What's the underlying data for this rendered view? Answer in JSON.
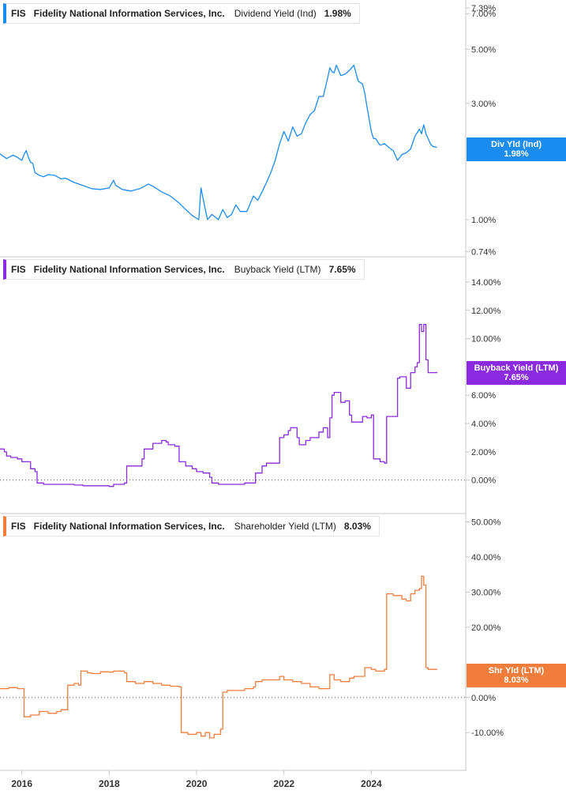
{
  "chart_data": [
    {
      "type": "line",
      "title": "FIS Fidelity National Information Services, Inc. Dividend Yield (Ind)",
      "legend": {
        "symbol": "FIS",
        "company": "Fidelity National Information Services, Inc.",
        "series_label": "Dividend Yield (Ind)",
        "value_label": "1.98%"
      },
      "flag": {
        "label": "Div Yld (Ind)",
        "value_label": "1.98%",
        "line2_visible_prefix": "2."
      },
      "color": "#1a8cf0",
      "y_scale": "log",
      "ylim": [
        0.72,
        7.5
      ],
      "y_ticks": [
        {
          "value": 7.39,
          "label": "7.39%"
        },
        {
          "value": 7.0,
          "label": "7.00%"
        },
        {
          "value": 5.0,
          "label": "5.00%"
        },
        {
          "value": 3.0,
          "label": "3.00%"
        },
        {
          "value": 1.0,
          "label": "1.00%"
        },
        {
          "value": 0.74,
          "label": "0.74%"
        }
      ],
      "series": [
        {
          "x": [
            2015.5,
            2015.65,
            2015.8,
            2015.9,
            2016.0,
            2016.05,
            2016.1,
            2016.15,
            2016.2,
            2016.25,
            2016.3,
            2016.4,
            2016.5,
            2016.6,
            2016.75,
            2016.9,
            2017.0,
            2017.2,
            2017.4,
            2017.6,
            2017.8,
            2018.0,
            2018.1,
            2018.15,
            2018.3,
            2018.5,
            2018.7,
            2018.9,
            2019.0,
            2019.2,
            2019.4,
            2019.6,
            2019.75,
            2019.9,
            2020.05,
            2020.1,
            2020.15,
            2020.2,
            2020.25,
            2020.35,
            2020.5,
            2020.6,
            2020.7,
            2020.8,
            2020.9,
            2021.0,
            2021.15,
            2021.3,
            2021.4,
            2021.5,
            2021.6,
            2021.7,
            2021.8,
            2021.9,
            2022.0,
            2022.1,
            2022.2,
            2022.3,
            2022.4,
            2022.5,
            2022.6,
            2022.7,
            2022.8,
            2022.9,
            2023.0,
            2023.05,
            2023.1,
            2023.15,
            2023.2,
            2023.3,
            2023.4,
            2023.5,
            2023.6,
            2023.7,
            2023.8,
            2023.85,
            2023.9,
            2024.0,
            2024.05,
            2024.1,
            2024.15,
            2024.2,
            2024.3,
            2024.4,
            2024.5,
            2024.6,
            2024.7,
            2024.8,
            2024.9,
            2025.0,
            2025.1,
            2025.15,
            2025.2,
            2025.25,
            2025.3,
            2025.35,
            2025.4,
            2025.5
          ],
          "y": [
            1.86,
            1.78,
            1.84,
            1.8,
            1.75,
            1.85,
            1.92,
            1.8,
            1.72,
            1.7,
            1.56,
            1.52,
            1.5,
            1.53,
            1.52,
            1.47,
            1.48,
            1.42,
            1.38,
            1.34,
            1.33,
            1.35,
            1.45,
            1.38,
            1.33,
            1.31,
            1.34,
            1.4,
            1.37,
            1.3,
            1.25,
            1.17,
            1.1,
            1.04,
            1.0,
            1.35,
            1.22,
            1.1,
            1.0,
            1.05,
            1.0,
            1.1,
            1.02,
            1.05,
            1.15,
            1.08,
            1.08,
            1.25,
            1.2,
            1.3,
            1.42,
            1.56,
            1.75,
            2.05,
            2.3,
            2.1,
            2.4,
            2.2,
            2.25,
            2.5,
            2.7,
            2.8,
            3.2,
            3.2,
            3.8,
            4.2,
            4.05,
            4.0,
            4.3,
            3.9,
            3.95,
            4.1,
            4.3,
            3.7,
            3.6,
            3.3,
            2.9,
            2.3,
            2.15,
            2.15,
            2.08,
            2.02,
            2.05,
            1.98,
            1.92,
            1.75,
            1.85,
            1.88,
            1.95,
            2.2,
            2.35,
            2.25,
            2.45,
            2.25,
            2.15,
            2.05,
            2.0,
            1.98
          ]
        }
      ]
    },
    {
      "type": "line",
      "title": "FIS Fidelity National Information Services, Inc. Buyback Yield (LTM)",
      "legend": {
        "symbol": "FIS",
        "company": "Fidelity National Information Services, Inc.",
        "series_label": "Buyback Yield (LTM)",
        "value_label": "7.65%"
      },
      "flag": {
        "label": "Buyback Yield (LTM)",
        "value_label": "7.65%"
      },
      "color": "#8a2be2",
      "ylim": [
        -0.8,
        14.5
      ],
      "y_ticks": [
        {
          "value": 14,
          "label": "14.00%"
        },
        {
          "value": 12,
          "label": "12.00%"
        },
        {
          "value": 10,
          "label": "10.00%"
        },
        {
          "value": 6,
          "label": "6.00%"
        },
        {
          "value": 4,
          "label": "4.00%"
        },
        {
          "value": 2,
          "label": "2.00%"
        },
        {
          "value": 0,
          "label": "0.00%"
        }
      ],
      "series": [
        {
          "x": [
            2015.5,
            2015.6,
            2015.65,
            2015.75,
            2015.9,
            2016.0,
            2016.05,
            2016.2,
            2016.3,
            2016.35,
            2016.5,
            2016.7,
            2016.9,
            2017.0,
            2017.2,
            2017.4,
            2017.6,
            2017.8,
            2018.0,
            2018.1,
            2018.2,
            2018.35,
            2018.4,
            2018.6,
            2018.75,
            2018.8,
            2018.9,
            2019.0,
            2019.2,
            2019.3,
            2019.35,
            2019.45,
            2019.5,
            2019.6,
            2019.75,
            2019.9,
            2020.0,
            2020.15,
            2020.3,
            2020.35,
            2020.5,
            2020.7,
            2020.9,
            2021.1,
            2021.3,
            2021.35,
            2021.5,
            2021.6,
            2021.85,
            2021.9,
            2022.0,
            2022.1,
            2022.15,
            2022.3,
            2022.35,
            2022.5,
            2022.6,
            2022.7,
            2022.8,
            2022.9,
            2023.0,
            2023.05,
            2023.1,
            2023.15,
            2023.3,
            2023.4,
            2023.5,
            2023.55,
            2023.6,
            2023.7,
            2023.8,
            2023.9,
            2024.0,
            2024.05,
            2024.1,
            2024.2,
            2024.3,
            2024.35,
            2024.5,
            2024.6,
            2024.65,
            2024.8,
            2024.9,
            2025.0,
            2025.05,
            2025.1,
            2025.15,
            2025.2,
            2025.25,
            2025.3,
            2025.4,
            2025.5
          ],
          "y": [
            2.2,
            2.0,
            1.7,
            1.6,
            1.5,
            1.3,
            1.3,
            0.8,
            0.6,
            -0.2,
            -0.3,
            -0.3,
            -0.3,
            -0.3,
            -0.35,
            -0.4,
            -0.4,
            -0.4,
            -0.45,
            -0.3,
            -0.3,
            -0.2,
            1.0,
            1.0,
            1.5,
            2.2,
            2.2,
            2.6,
            2.8,
            2.7,
            2.5,
            2.5,
            2.4,
            1.3,
            1.0,
            0.8,
            0.6,
            0.5,
            0.2,
            -0.2,
            -0.3,
            -0.3,
            -0.3,
            -0.2,
            -0.2,
            0.5,
            1.0,
            1.2,
            1.2,
            3.0,
            3.2,
            3.5,
            3.7,
            3.0,
            2.5,
            2.8,
            3.0,
            3.0,
            3.4,
            3.7,
            3.0,
            4.4,
            6.0,
            6.2,
            5.5,
            5.6,
            4.6,
            4.1,
            4.1,
            4.1,
            4.5,
            4.4,
            4.6,
            1.5,
            1.5,
            1.3,
            1.2,
            4.5,
            4.5,
            7.2,
            7.3,
            6.5,
            7.6,
            8.0,
            8.3,
            11.0,
            10.5,
            11.0,
            8.5,
            7.6,
            7.6,
            7.65
          ]
        }
      ]
    },
    {
      "type": "line",
      "title": "FIS Fidelity National Information Services, Inc. Shareholder Yield (LTM)",
      "legend": {
        "symbol": "FIS",
        "company": "Fidelity National Information Services, Inc.",
        "series_label": "Shareholder Yield (LTM)",
        "value_label": "8.03%"
      },
      "flag": {
        "label": "Shr Yld (LTM)",
        "value_label": "8.03%",
        "line1_visible_suffix": "10.00%"
      },
      "color": "#f07d3c",
      "ylim": [
        -14,
        51
      ],
      "y_ticks": [
        {
          "value": 50,
          "label": "50.00%"
        },
        {
          "value": 40,
          "label": "40.00%"
        },
        {
          "value": 30,
          "label": "30.00%"
        },
        {
          "value": 20,
          "label": "20.00%"
        },
        {
          "value": 0,
          "label": "0.00%"
        },
        {
          "value": -10,
          "label": "-10.00%"
        }
      ],
      "series": [
        {
          "x": [
            2015.5,
            2015.7,
            2015.9,
            2016.0,
            2016.05,
            2016.2,
            2016.4,
            2016.6,
            2016.8,
            2016.9,
            2017.0,
            2017.05,
            2017.2,
            2017.3,
            2017.35,
            2017.5,
            2017.6,
            2017.8,
            2018.0,
            2018.1,
            2018.35,
            2018.4,
            2018.6,
            2018.8,
            2019.0,
            2019.2,
            2019.4,
            2019.6,
            2019.65,
            2019.8,
            2020.0,
            2020.1,
            2020.2,
            2020.3,
            2020.4,
            2020.55,
            2020.6,
            2020.7,
            2020.9,
            2021.1,
            2021.3,
            2021.35,
            2021.5,
            2021.7,
            2021.9,
            2022.0,
            2022.2,
            2022.4,
            2022.6,
            2022.8,
            2023.0,
            2023.05,
            2023.15,
            2023.3,
            2023.5,
            2023.6,
            2023.8,
            2023.85,
            2024.0,
            2024.1,
            2024.3,
            2024.35,
            2024.5,
            2024.7,
            2024.8,
            2024.9,
            2025.0,
            2025.1,
            2025.15,
            2025.2,
            2025.25,
            2025.3,
            2025.5
          ],
          "y": [
            2.5,
            2.8,
            2.5,
            2.5,
            -5.5,
            -5.0,
            -4.0,
            -4.5,
            -4.0,
            -3.5,
            -3.5,
            3.5,
            4.0,
            3.5,
            7.5,
            7.0,
            6.8,
            7.3,
            7.2,
            7.5,
            7.0,
            4.5,
            4.0,
            4.5,
            4.0,
            3.5,
            3.2,
            3.0,
            -10.0,
            -10.5,
            -10.0,
            -11.0,
            -10.0,
            -11.5,
            -10.5,
            -9.0,
            1.5,
            2.0,
            2.0,
            2.5,
            3.0,
            4.5,
            5.0,
            5.0,
            6.0,
            5.0,
            4.5,
            4.0,
            3.0,
            2.5,
            2.5,
            6.5,
            5.0,
            4.5,
            5.5,
            6.0,
            6.0,
            8.5,
            8.0,
            7.5,
            8.0,
            29.5,
            29.0,
            28.0,
            27.5,
            29.5,
            30.5,
            31.0,
            34.5,
            32.0,
            8.5,
            8.0,
            8.03
          ]
        }
      ]
    }
  ],
  "x_axis": {
    "ticks": [
      {
        "value": 2016,
        "label": "2016"
      },
      {
        "value": 2018,
        "label": "2018"
      },
      {
        "value": 2020,
        "label": "2020"
      },
      {
        "value": 2022,
        "label": "2022"
      },
      {
        "value": 2024,
        "label": "2024"
      }
    ],
    "range": [
      2015.5,
      2025.8
    ]
  }
}
